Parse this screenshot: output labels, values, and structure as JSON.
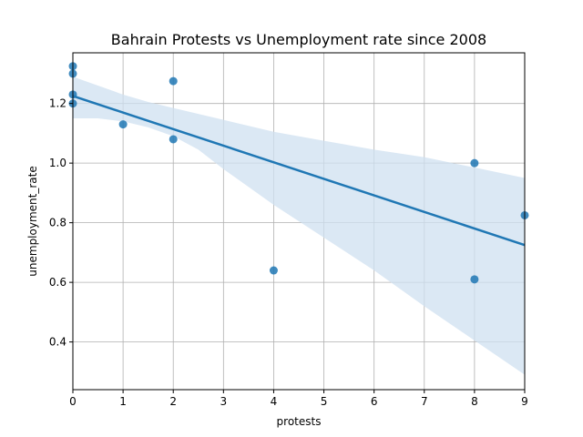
{
  "chart_data": {
    "type": "scatter",
    "title": "Bahrain Protests vs Unemployment rate since 2008",
    "xlabel": "protests",
    "ylabel": "unemployment_rate",
    "xlim": [
      0,
      9
    ],
    "ylim": [
      0.24,
      1.37
    ],
    "xticks": [
      0,
      1,
      2,
      3,
      4,
      5,
      6,
      7,
      8,
      9
    ],
    "yticks": [
      0.4,
      0.6,
      0.8,
      1.0,
      1.2
    ],
    "ytick_labels": [
      "0.4",
      "0.6",
      "0.8",
      "1.0",
      "1.2"
    ],
    "grid": true,
    "points": [
      {
        "x": 0,
        "y": 1.325
      },
      {
        "x": 0,
        "y": 1.3
      },
      {
        "x": 0,
        "y": 1.23
      },
      {
        "x": 0,
        "y": 1.2
      },
      {
        "x": 1,
        "y": 1.13
      },
      {
        "x": 2,
        "y": 1.275
      },
      {
        "x": 2,
        "y": 1.08
      },
      {
        "x": 4,
        "y": 0.64
      },
      {
        "x": 8,
        "y": 1.0
      },
      {
        "x": 8,
        "y": 0.61
      },
      {
        "x": 9,
        "y": 0.825
      }
    ],
    "regression": {
      "x": [
        0,
        9
      ],
      "y": [
        1.225,
        0.725
      ]
    },
    "confidence_band": {
      "x": [
        0,
        0.5,
        1,
        1.5,
        2,
        2.5,
        3,
        4,
        5,
        6,
        7,
        8,
        9
      ],
      "upper": [
        1.29,
        1.26,
        1.23,
        1.205,
        1.185,
        1.165,
        1.145,
        1.105,
        1.075,
        1.045,
        1.02,
        0.985,
        0.95
      ],
      "lower": [
        1.15,
        1.15,
        1.14,
        1.12,
        1.09,
        1.045,
        0.98,
        0.86,
        0.75,
        0.64,
        0.52,
        0.405,
        0.29
      ]
    },
    "colors": {
      "points": "#1f77b4",
      "line": "#1f77b4",
      "band": "#cfe0f0",
      "grid": "#b0b0b0"
    }
  }
}
